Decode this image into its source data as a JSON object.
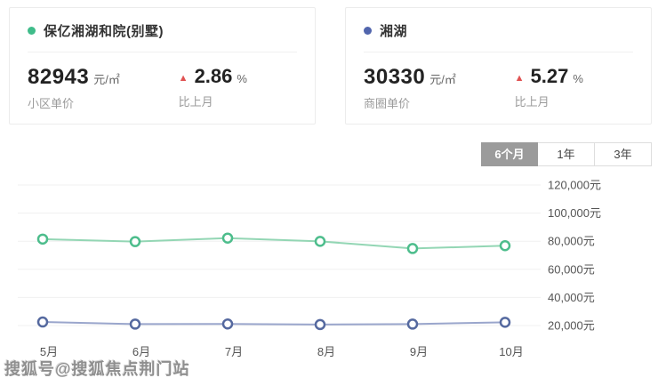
{
  "cards": [
    {
      "name": "保亿湘湖和院(别墅)",
      "dot_color": "#3fbc8a",
      "price": "82943",
      "unit": "元/㎡",
      "price_label": "小区单价",
      "change_value": "2.86",
      "change_unit": "%",
      "change_label": "比上月",
      "change_direction": "up",
      "change_color": "#e05252"
    },
    {
      "name": "湘湖",
      "dot_color": "#5165ad",
      "price": "30330",
      "unit": "元/㎡",
      "price_label": "商圈单价",
      "change_value": "5.27",
      "change_unit": "%",
      "change_label": "比上月",
      "change_direction": "up",
      "change_color": "#e05252"
    }
  ],
  "tabs": [
    {
      "label": "6个月",
      "active": true
    },
    {
      "label": "1年",
      "active": false
    },
    {
      "label": "3年",
      "active": false
    }
  ],
  "triangle_glyph": "▲",
  "watermark": "搜狐号@搜狐焦点荆门站",
  "chart_data": {
    "type": "line",
    "categories": [
      "5月",
      "6月",
      "7月",
      "8月",
      "9月",
      "10月"
    ],
    "series": [
      {
        "name": "保亿湘湖和院(别墅)",
        "line_color": "#93d6b4",
        "marker_color": "#4dbd8c",
        "values": [
          81500,
          79700,
          82200,
          79900,
          74800,
          76800
        ]
      },
      {
        "name": "湘湖",
        "line_color": "#9aa6cc",
        "marker_color": "#55699f",
        "values": [
          22500,
          21000,
          21100,
          20700,
          21000,
          22300
        ]
      }
    ],
    "yticks": [
      120000,
      100000,
      80000,
      60000,
      40000,
      20000
    ],
    "ytick_labels": [
      "120,000元",
      "100,000元",
      "80,000元",
      "60,000元",
      "40,000元",
      "20,000元"
    ],
    "ylim": [
      14000,
      126000
    ],
    "grid": true,
    "legend_position": "top-cards",
    "xlabel": "",
    "ylabel": ""
  }
}
